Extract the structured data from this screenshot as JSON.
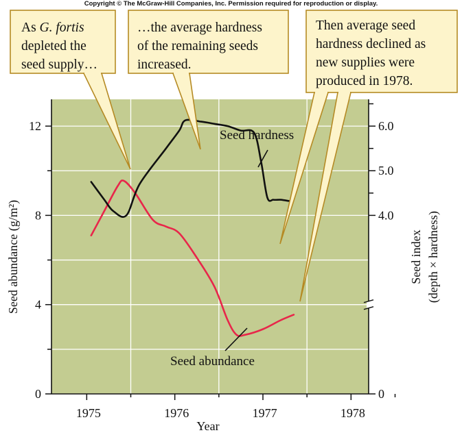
{
  "copyright": "Copyright © The McGraw-Hill Companies, Inc. Permission required for reproduction or display.",
  "colors": {
    "plot_background": "#c3cc91",
    "grid": "#ffffff",
    "seed_abundance": "#e8264a",
    "seed_hardness": "#111111",
    "callout_fill": "#fdf4cb",
    "callout_stroke": "#b58a24"
  },
  "callouts": [
    {
      "lines": [
        {
          "pre": "As ",
          "italic": "G. fortis",
          "post": ""
        },
        {
          "pre": "depleted the"
        },
        {
          "pre": "seed supply…"
        }
      ]
    },
    {
      "lines": [
        {
          "pre": "…the average hardness"
        },
        {
          "pre": "of the remaining seeds"
        },
        {
          "pre": "increased."
        }
      ]
    },
    {
      "lines": [
        {
          "pre": "Then average seed"
        },
        {
          "pre": "hardness declined as"
        },
        {
          "pre": "new supplies were"
        },
        {
          "pre": "produced in 1978."
        }
      ]
    }
  ],
  "chart_data": {
    "type": "line",
    "title": "",
    "xlabel": "Year",
    "ylabel_left": "Seed abundance (g/m²)",
    "ylabel_right_lines": [
      "Seed index",
      "(depth × hardness)"
    ],
    "x_ticks": [
      "1975",
      "1976",
      "1977",
      "1978"
    ],
    "xlim": [
      1974.6,
      1978.2
    ],
    "ylim_left": [
      0,
      13.2
    ],
    "y_ticks_left": [
      0,
      4,
      8,
      12
    ],
    "ylim_right": [
      0,
      6.6
    ],
    "y_ticks_right_labeled": [
      {
        "value": 0,
        "label": "0"
      },
      {
        "value": 4.0,
        "label": "4.0"
      },
      {
        "value": 5.0,
        "label": "5.0"
      },
      {
        "value": 6.0,
        "label": "6.0"
      }
    ],
    "y_ticks_right_minor": [
      4.5,
      5.5,
      6.5
    ],
    "right_axis_break": true,
    "grid": true,
    "series": [
      {
        "name": "Seed abundance",
        "axis": "left",
        "points": [
          [
            1975.05,
            7.1
          ],
          [
            1975.2,
            8.2
          ],
          [
            1975.35,
            9.3
          ],
          [
            1975.42,
            9.55
          ],
          [
            1975.55,
            9.0
          ],
          [
            1975.75,
            7.8
          ],
          [
            1975.9,
            7.5
          ],
          [
            1976.05,
            7.2
          ],
          [
            1976.25,
            6.1
          ],
          [
            1976.45,
            4.8
          ],
          [
            1976.6,
            3.3
          ],
          [
            1976.7,
            2.65
          ],
          [
            1976.8,
            2.65
          ],
          [
            1977.0,
            2.9
          ],
          [
            1977.2,
            3.3
          ],
          [
            1977.35,
            3.55
          ]
        ]
      },
      {
        "name": "Seed hardness",
        "axis": "right",
        "points": [
          [
            1975.05,
            4.75
          ],
          [
            1975.2,
            4.35
          ],
          [
            1975.3,
            4.1
          ],
          [
            1975.45,
            4.0
          ],
          [
            1975.6,
            4.7
          ],
          [
            1975.9,
            5.5
          ],
          [
            1976.05,
            5.9
          ],
          [
            1976.12,
            6.13
          ],
          [
            1976.3,
            6.1
          ],
          [
            1976.45,
            6.05
          ],
          [
            1976.6,
            6.0
          ],
          [
            1976.75,
            5.9
          ],
          [
            1976.9,
            5.85
          ],
          [
            1976.98,
            5.2
          ],
          [
            1977.05,
            4.4
          ],
          [
            1977.12,
            4.35
          ],
          [
            1977.2,
            4.35
          ],
          [
            1977.3,
            4.32
          ]
        ]
      }
    ]
  }
}
